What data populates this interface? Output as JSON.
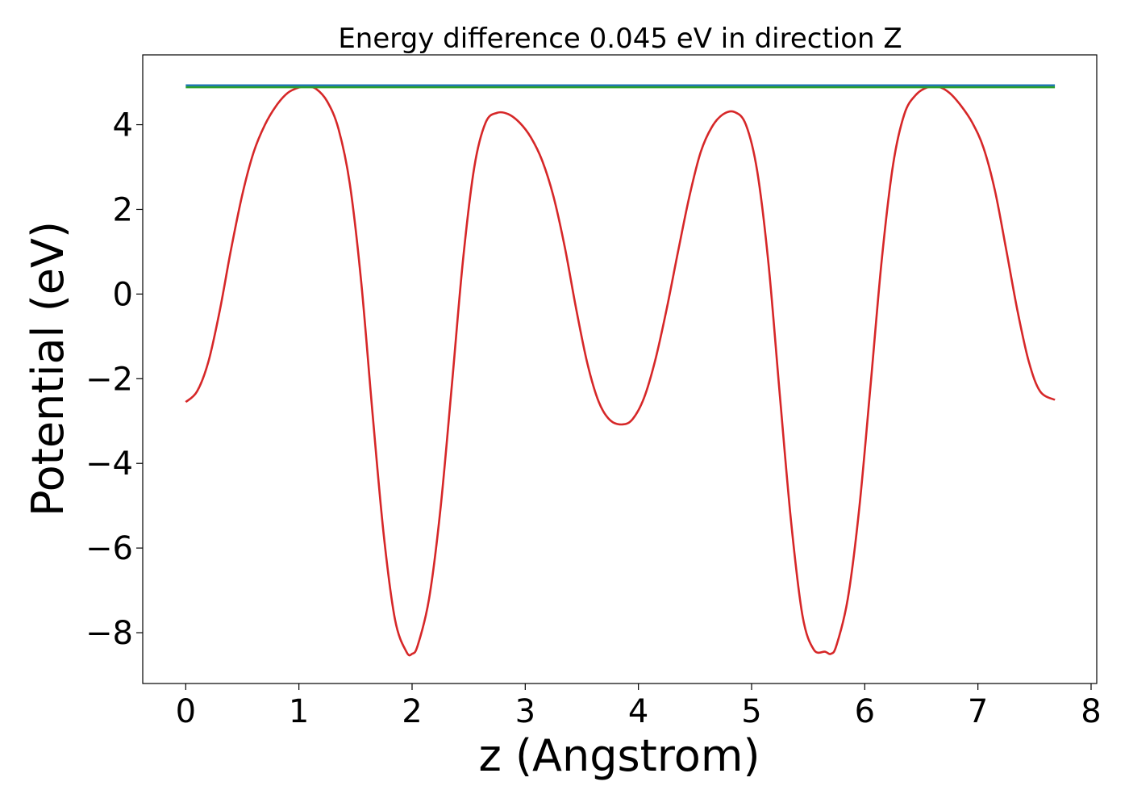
{
  "chart_data": {
    "type": "line",
    "title": "Energy difference 0.045 eV in direction Z",
    "xlabel": "z (Angstrom)",
    "ylabel": "Potential (eV)",
    "xlim": [
      -0.38,
      8.05
    ],
    "ylim": [
      -9.2,
      5.65
    ],
    "xticks": [
      0,
      1,
      2,
      3,
      4,
      5,
      6,
      7,
      8
    ],
    "yticks": [
      -8,
      -6,
      -4,
      -2,
      0,
      2,
      4
    ],
    "xtick_labels": [
      "0",
      "1",
      "2",
      "3",
      "4",
      "5",
      "6",
      "7",
      "8"
    ],
    "ytick_labels": [
      "−8",
      "−6",
      "−4",
      "−2",
      "0",
      "2",
      "4"
    ],
    "grid": false,
    "series": [
      {
        "color": "#d62728",
        "x": [
          0.0,
          0.1,
          0.2,
          0.3,
          0.4,
          0.5,
          0.6,
          0.7,
          0.8,
          0.9,
          1.0,
          1.07,
          1.15,
          1.25,
          1.35,
          1.45,
          1.55,
          1.65,
          1.75,
          1.85,
          1.95,
          2.0,
          2.05,
          2.15,
          2.25,
          2.35,
          2.45,
          2.55,
          2.65,
          2.75,
          2.85,
          2.95,
          3.05,
          3.15,
          3.25,
          3.35,
          3.45,
          3.55,
          3.65,
          3.75,
          3.86,
          3.95,
          4.05,
          4.15,
          4.25,
          4.35,
          4.45,
          4.55,
          4.65,
          4.75,
          4.85,
          4.95,
          5.05,
          5.15,
          5.25,
          5.35,
          5.45,
          5.55,
          5.65,
          5.7,
          5.75,
          5.85,
          5.95,
          6.05,
          6.15,
          6.25,
          6.35,
          6.45,
          6.55,
          6.65,
          6.75,
          6.85,
          6.95,
          7.05,
          7.15,
          7.25,
          7.35,
          7.45,
          7.55,
          7.68
        ],
        "y": [
          -2.55,
          -2.3,
          -1.6,
          -0.4,
          1.05,
          2.35,
          3.35,
          4.0,
          4.45,
          4.75,
          4.88,
          4.9,
          4.85,
          4.55,
          3.9,
          2.6,
          0.3,
          -2.8,
          -5.7,
          -7.7,
          -8.45,
          -8.5,
          -8.3,
          -7.2,
          -5.1,
          -2.2,
          0.8,
          3.0,
          4.05,
          4.28,
          4.25,
          4.05,
          3.7,
          3.15,
          2.3,
          1.1,
          -0.35,
          -1.65,
          -2.55,
          -2.98,
          -3.08,
          -2.95,
          -2.45,
          -1.55,
          -0.35,
          1.0,
          2.3,
          3.35,
          3.95,
          4.25,
          4.3,
          4.0,
          2.9,
          0.7,
          -2.4,
          -5.4,
          -7.6,
          -8.4,
          -8.45,
          -8.5,
          -8.3,
          -7.2,
          -5.1,
          -2.2,
          0.8,
          3.05,
          4.25,
          4.7,
          4.88,
          4.9,
          4.75,
          4.45,
          4.05,
          3.45,
          2.45,
          1.05,
          -0.4,
          -1.6,
          -2.3,
          -2.5
        ]
      },
      {
        "color": "#1f77b4",
        "x": [
          0.0,
          7.68
        ],
        "y": [
          4.93,
          4.93
        ]
      },
      {
        "color": "#2ca02c",
        "x": [
          0.0,
          7.68
        ],
        "y": [
          4.885,
          4.885
        ]
      }
    ]
  }
}
